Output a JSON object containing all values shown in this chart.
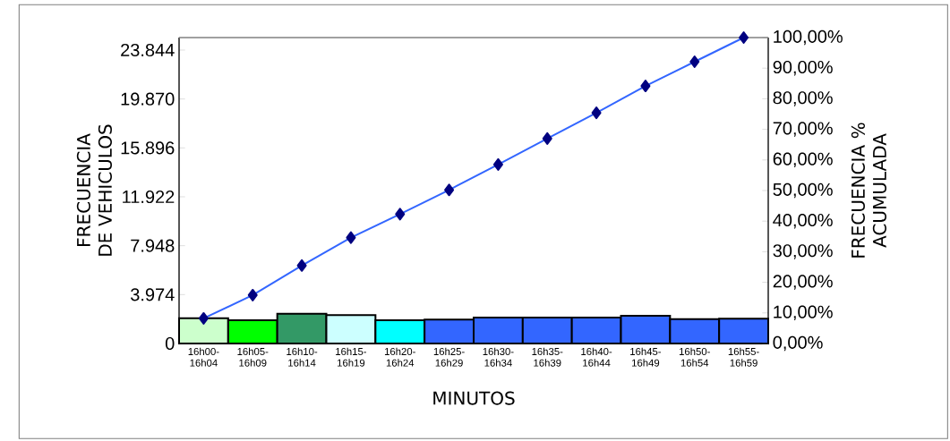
{
  "chart_data": {
    "type": "bar",
    "xlabel": "MINUTOS",
    "ylabel": "FRECUENCIA DE VEHICULOS",
    "y2label": "FRECUENCIA % ACUMULADA",
    "categories": [
      "16h00-16h04",
      "16h05-16h09",
      "16h10-16h14",
      "16h15-16h19",
      "16h20-16h24",
      "16h25-16h29",
      "16h30-16h34",
      "16h35-16h39",
      "16h40-16h44",
      "16h45-16h49",
      "16h50-16h54",
      "16h55-16h59"
    ],
    "series": [
      {
        "values": [
          2050,
          1890,
          2410,
          2310,
          1890,
          1950,
          2110,
          2110,
          2110,
          2250,
          1980,
          2020
        ],
        "colors": [
          "#ccffcc",
          "#00ff00",
          "#339966",
          "#ccffff",
          "#00ffff",
          "#3366ff",
          "#3366ff",
          "#3366ff",
          "#3366ff",
          "#3366ff",
          "#3366ff",
          "#3366ff"
        ]
      },
      {
        "type": "line",
        "axis": "y2",
        "color": "#3366ff",
        "marker": "diamond",
        "line_style": "solid",
        "values": [
          8.2,
          15.8,
          25.5,
          34.6,
          42.3,
          50.2,
          58.5,
          67.0,
          75.4,
          84.2,
          92.1,
          100.0
        ]
      }
    ],
    "ylim": [
      0,
      24860
    ],
    "yticks": [
      0,
      {
        "value": 3974,
        "label": "3.974"
      },
      {
        "value": 7948,
        "label": "7.948"
      },
      {
        "value": 11922,
        "label": "11.922"
      },
      {
        "value": 15896,
        "label": "15.896"
      },
      {
        "value": 19870,
        "label": "19.870"
      },
      {
        "value": 23844,
        "label": "23.844"
      }
    ],
    "y2lim": [
      0,
      100
    ],
    "y2ticks": [
      {
        "value": 0,
        "label": "0,00%"
      },
      {
        "value": 10,
        "label": "10,00%"
      },
      {
        "value": 20,
        "label": "20,00%"
      },
      {
        "value": 30,
        "label": "30,00%"
      },
      {
        "value": 40,
        "label": "40,00%"
      },
      {
        "value": 50,
        "label": "50,00%"
      },
      {
        "value": 60,
        "label": "60,00%"
      },
      {
        "value": 70,
        "label": "70,00%"
      },
      {
        "value": 80,
        "label": "80,00%"
      },
      {
        "value": 90,
        "label": "90,00%"
      },
      {
        "value": 100,
        "label": "100,00%"
      }
    ]
  }
}
